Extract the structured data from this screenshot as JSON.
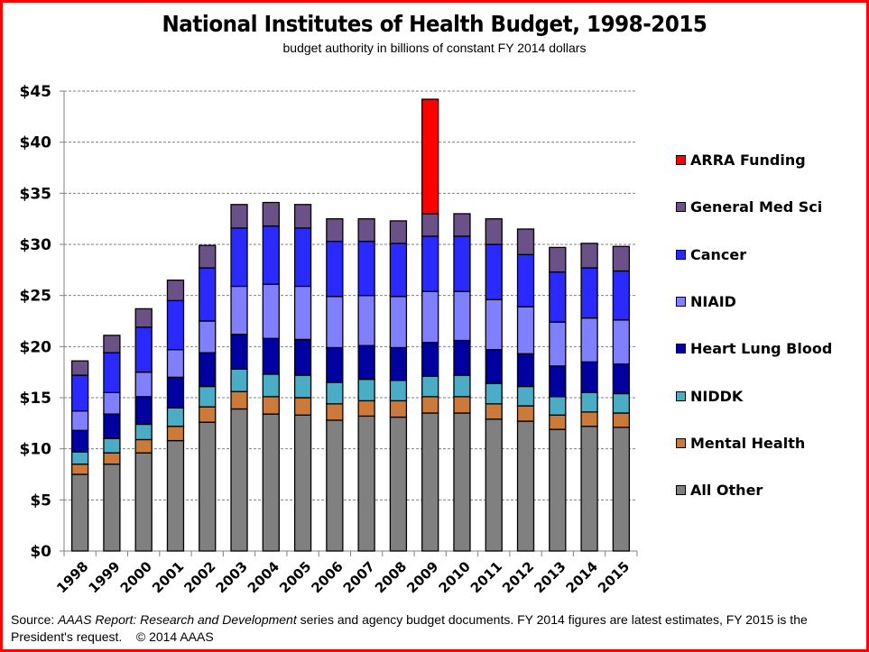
{
  "frame_color": "#ff0000",
  "footer": {
    "source_prefix": "Source: ",
    "source_italic": "AAAS Report: Research and Development",
    "source_rest": " series and agency budget documents. FY 2014 figures are latest estimates, FY 2015 is the President's request.",
    "copyright": "© 2014 AAAS"
  },
  "chart_data": {
    "type": "bar",
    "stacked": true,
    "title": "National Institutes of Health Budget, 1998-2015",
    "subtitle": "budget authority in billions of constant FY 2014 dollars",
    "xlabel": "",
    "ylabel": "",
    "ylim": [
      0,
      45
    ],
    "yticks": [
      0,
      5,
      10,
      15,
      20,
      25,
      30,
      35,
      40,
      45
    ],
    "ytick_labels": [
      "$0",
      "$5",
      "$10",
      "$15",
      "$20",
      "$25",
      "$30",
      "$35",
      "$40",
      "$45"
    ],
    "grid": "horizontal-dashed",
    "legend_position": "right",
    "categories": [
      "1998",
      "1999",
      "2000",
      "2001",
      "2002",
      "2003",
      "2004",
      "2005",
      "2006",
      "2007",
      "2008",
      "2009",
      "2010",
      "2011",
      "2012",
      "2013",
      "2014",
      "2015"
    ],
    "series": [
      {
        "name": "All Other",
        "color": "#808080",
        "values": [
          7.5,
          8.5,
          9.6,
          10.8,
          12.6,
          13.9,
          13.4,
          13.3,
          12.8,
          13.2,
          13.1,
          13.5,
          13.5,
          12.9,
          12.7,
          11.9,
          12.2,
          12.1
        ]
      },
      {
        "name": "Mental Health",
        "color": "#cc7a3a",
        "values": [
          1.0,
          1.1,
          1.3,
          1.4,
          1.5,
          1.7,
          1.7,
          1.7,
          1.6,
          1.5,
          1.6,
          1.6,
          1.6,
          1.5,
          1.5,
          1.4,
          1.4,
          1.4
        ]
      },
      {
        "name": "NIDDK",
        "color": "#4bacc6",
        "values": [
          1.2,
          1.4,
          1.5,
          1.8,
          2.0,
          2.2,
          2.2,
          2.2,
          2.1,
          2.1,
          2.0,
          2.0,
          2.1,
          2.0,
          1.9,
          1.8,
          1.9,
          1.9
        ]
      },
      {
        "name": "Heart Lung Blood",
        "color": "#0000a0",
        "values": [
          2.1,
          2.4,
          2.7,
          3.0,
          3.3,
          3.4,
          3.5,
          3.5,
          3.4,
          3.3,
          3.2,
          3.3,
          3.4,
          3.3,
          3.2,
          3.0,
          3.0,
          2.9
        ]
      },
      {
        "name": "NIAID",
        "color": "#8080ff",
        "values": [
          1.9,
          2.1,
          2.4,
          2.7,
          3.1,
          4.7,
          5.3,
          5.2,
          5.0,
          4.9,
          5.0,
          5.0,
          4.8,
          4.9,
          4.6,
          4.3,
          4.3,
          4.3
        ]
      },
      {
        "name": "Cancer",
        "color": "#2a2aff",
        "values": [
          3.5,
          3.9,
          4.4,
          4.8,
          5.2,
          5.7,
          5.7,
          5.7,
          5.4,
          5.3,
          5.2,
          5.4,
          5.4,
          5.4,
          5.1,
          4.9,
          4.9,
          4.8
        ]
      },
      {
        "name": "General Med Sci",
        "color": "#6a5289",
        "values": [
          1.4,
          1.7,
          1.8,
          2.0,
          2.2,
          2.3,
          2.3,
          2.3,
          2.2,
          2.2,
          2.2,
          2.2,
          2.2,
          2.5,
          2.5,
          2.4,
          2.4,
          2.4
        ]
      },
      {
        "name": "ARRA Funding",
        "color": "#ff0000",
        "values": [
          0,
          0,
          0,
          0,
          0,
          0,
          0,
          0,
          0,
          0,
          0,
          11.2,
          0,
          0,
          0,
          0,
          0,
          0
        ]
      }
    ],
    "legend_order": [
      "ARRA Funding",
      "General Med Sci",
      "Cancer",
      "NIAID",
      "Heart Lung Blood",
      "NIDDK",
      "Mental Health",
      "All Other"
    ]
  }
}
